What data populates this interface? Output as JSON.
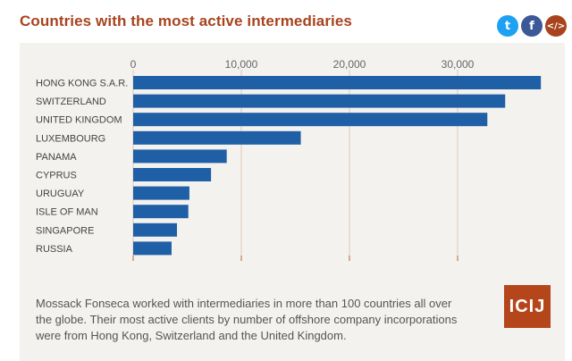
{
  "header": {
    "title": "Countries with the most active intermediaries",
    "share": {
      "twitter_icon": "twitter-icon",
      "facebook_icon": "facebook-icon",
      "embed_icon": "embed-code-icon"
    },
    "share_glyphs": {
      "twitter": "t",
      "facebook": "f",
      "embed": "</>"
    }
  },
  "colors": {
    "bar": "#1f5fa6",
    "title": "#a8431e",
    "grid": "#e6c5b5",
    "panel": "#f3f2ef"
  },
  "chart_data": {
    "type": "bar",
    "orientation": "horizontal",
    "categories": [
      "HONG KONG S.A.R.",
      "SWITZERLAND",
      "UNITED KINGDOM",
      "LUXEMBOURG",
      "PANAMA",
      "CYPRUS",
      "URUGUAY",
      "ISLE OF MAN",
      "SINGAPORE",
      "RUSSIA"
    ],
    "values": [
      37700,
      34400,
      32750,
      15500,
      8650,
      7200,
      5200,
      5100,
      4050,
      3550
    ],
    "xticks": [
      0,
      10000,
      20000,
      30000
    ],
    "xtick_labels": [
      "0",
      "10,000",
      "20,000",
      "30,000"
    ],
    "xlim": [
      0,
      40000
    ],
    "grid": true
  },
  "caption": "Mossack Fonseca worked with intermediaries in more than 100 countries all over the globe. Their most active clients by number of offshore company incorporations were from Hong Kong, Switzerland and the United Kingdom.",
  "logo_text": "ICIJ"
}
